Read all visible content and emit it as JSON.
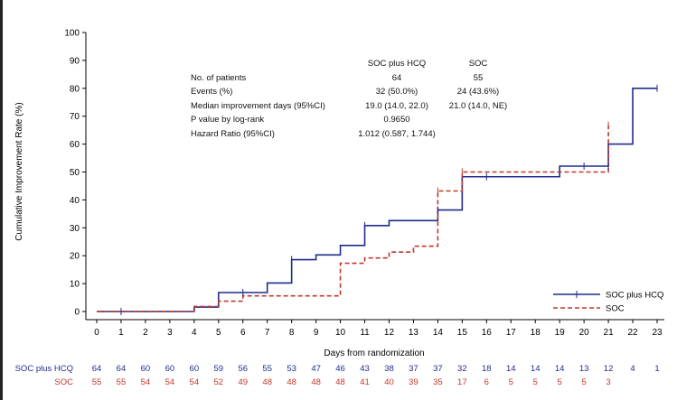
{
  "chart_data": {
    "type": "line",
    "step": true,
    "title": "",
    "xlabel": "Days from randomization",
    "ylabel": "Cumulative Improvement Rate (%)",
    "xlim": [
      0,
      23
    ],
    "ylim": [
      0,
      100
    ],
    "xticks": [
      "0",
      "1",
      "2",
      "3",
      "4",
      "5",
      "6",
      "7",
      "8",
      "9",
      "10",
      "11",
      "12",
      "13",
      "14",
      "15",
      "16",
      "17",
      "18",
      "19",
      "20",
      "21",
      "22",
      "23"
    ],
    "yticks": [
      "0",
      "10",
      "20",
      "30",
      "40",
      "50",
      "60",
      "70",
      "80",
      "90",
      "100"
    ],
    "legend_position": "bottom-right",
    "series": [
      {
        "name": "SOC plus HCQ",
        "color": "#1f2c8c",
        "style": "solid",
        "steps": [
          [
            0,
            0
          ],
          [
            4,
            1.6
          ],
          [
            5,
            6.8
          ],
          [
            7,
            10.2
          ],
          [
            8,
            18.6
          ],
          [
            9,
            20.3
          ],
          [
            10,
            23.7
          ],
          [
            11,
            30.8
          ],
          [
            12,
            32.6
          ],
          [
            14,
            36.4
          ],
          [
            15,
            48.3
          ],
          [
            19,
            52.1
          ],
          [
            21,
            60.0
          ],
          [
            22,
            80.0
          ],
          [
            23,
            80.0
          ]
        ],
        "censor": [
          [
            1,
            0
          ],
          [
            6,
            6.8
          ],
          [
            8,
            18.6
          ],
          [
            11,
            30.8
          ],
          [
            14,
            36.4
          ],
          [
            16,
            48.3
          ],
          [
            20,
            52.1
          ],
          [
            21,
            52.1
          ],
          [
            23,
            80.0
          ]
        ]
      },
      {
        "name": "SOC",
        "color": "#c0392b",
        "style": "dashed",
        "steps": [
          [
            0,
            0
          ],
          [
            4,
            1.8
          ],
          [
            5,
            3.7
          ],
          [
            6,
            5.6
          ],
          [
            10,
            17.3
          ],
          [
            11,
            19.2
          ],
          [
            12,
            21.3
          ],
          [
            13,
            23.4
          ],
          [
            14,
            43.2
          ],
          [
            15,
            50.0
          ],
          [
            21,
            66.7
          ]
        ],
        "censor": [
          [
            14,
            43.2
          ],
          [
            15,
            50.0
          ],
          [
            21,
            66.7
          ]
        ]
      }
    ],
    "stats_table": {
      "col_headers": [
        "SOC plus HCQ",
        "SOC"
      ],
      "rows": [
        {
          "label": "No. of patients",
          "hcq": "64",
          "soc": "55"
        },
        {
          "label": "Events (%)",
          "hcq": "32 (50.0%)",
          "soc": "24 (43.6%)"
        },
        {
          "label": "Median improvement days (95%CI)",
          "hcq": "19.0 (14.0, 22.0)",
          "soc": "21.0 (14.0, NE)"
        },
        {
          "label": "P value by log-rank",
          "shared": "0.9650"
        },
        {
          "label": "Hazard Ratio (95%CI)",
          "shared": "1.012 (0.587, 1.744)"
        }
      ]
    },
    "at_risk": [
      {
        "label": "SOC plus HCQ",
        "color": "#1f2c8c",
        "values": [
          "64",
          "64",
          "60",
          "60",
          "60",
          "59",
          "56",
          "55",
          "53",
          "47",
          "46",
          "43",
          "38",
          "37",
          "37",
          "32",
          "18",
          "14",
          "14",
          "14",
          "13",
          "12",
          "4",
          "1"
        ]
      },
      {
        "label": "SOC",
        "color": "#c0392b",
        "values": [
          "55",
          "55",
          "54",
          "54",
          "54",
          "52",
          "49",
          "48",
          "48",
          "48",
          "48",
          "41",
          "40",
          "39",
          "35",
          "17",
          "6",
          "5",
          "5",
          "5",
          "5",
          "3",
          "",
          ""
        ]
      }
    ]
  }
}
